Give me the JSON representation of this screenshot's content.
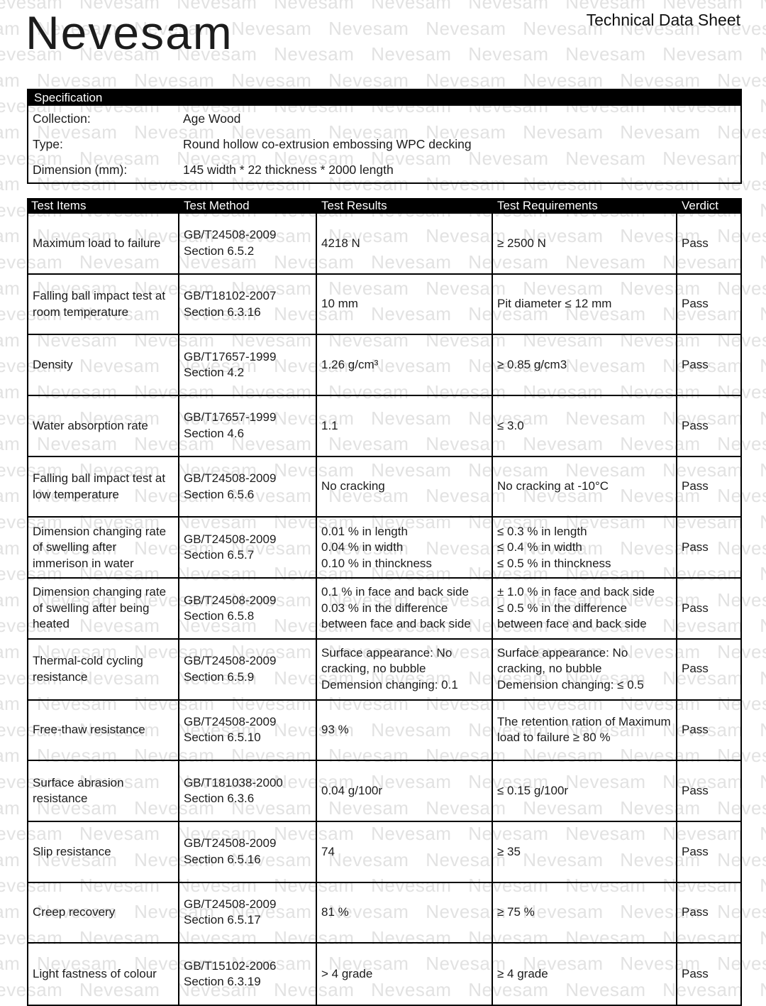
{
  "watermark": {
    "text": "Nevesam"
  },
  "header": {
    "logo": "Nevesam",
    "title": "Technical Data Sheet"
  },
  "specification": {
    "heading": "Specification",
    "rows": [
      {
        "label": "Collection:",
        "value": "Age Wood"
      },
      {
        "label": "Type:",
        "value": "Round hollow co-extrusion embossing WPC decking"
      },
      {
        "label": "Dimension (mm):",
        "value": "145 width * 22 thickness * 2000 length"
      }
    ]
  },
  "table": {
    "columns": [
      "Test Items",
      "Test Method",
      "Test Results",
      "Test Requirements",
      "Verdict"
    ],
    "rows": [
      {
        "item": "Maximum load to failure",
        "method": "GB/T24508-2009\nSection 6.5.2",
        "result": "4218 N",
        "requirement": "≥ 2500 N",
        "verdict": "Pass"
      },
      {
        "item": "Falling ball impact test at room temperature",
        "method": "GB/T18102-2007\nSection 6.3.16",
        "result": "10 mm",
        "requirement": "Pit diameter ≤ 12 mm",
        "verdict": "Pass"
      },
      {
        "item": "Density",
        "method": "GB/T17657-1999\nSection 4.2",
        "result": "1.26 g/cm³",
        "requirement": "≥ 0.85 g/cm3",
        "verdict": "Pass"
      },
      {
        "item": "Water absorption rate",
        "method": "GB/T17657-1999\nSection 4.6",
        "result": "1.1",
        "requirement": "≤ 3.0",
        "verdict": "Pass"
      },
      {
        "item": "Falling ball impact test at low temperature",
        "method": "GB/T24508-2009\nSection 6.5.6",
        "result": "No cracking",
        "requirement": "No cracking at -10°C",
        "verdict": "Pass"
      },
      {
        "item": "Dimension changing rate of swelling after immerison in water",
        "method": "GB/T24508-2009\nSection 6.5.7",
        "result": "0.01 % in length\n0.04 % in width\n0.10 % in thinckness",
        "requirement": "≤ 0.3 % in length\n≤ 0.4 % in width\n≤ 0.5 % in thinckness",
        "verdict": "Pass"
      },
      {
        "item": "Dimension changing rate of swelling after being heated",
        "method": "GB/T24508-2009\nSection 6.5.8",
        "result": "0.1 % in face and back side\n0.03 % in the difference between face and back side",
        "requirement": "± 1.0 % in face and back side\n≤ 0.5 % in the difference between face and back side",
        "verdict": "Pass"
      },
      {
        "item": "Thermal-cold cycling resistance",
        "method": "GB/T24508-2009\nSection 6.5.9",
        "result": "Surface appearance: No cracking, no bubble\nDemension changing: 0.1",
        "requirement": "Surface appearance: No cracking, no bubble\nDemension changing: ≤ 0.5",
        "verdict": "Pass"
      },
      {
        "item": "Free-thaw resistance",
        "method": "GB/T24508-2009\nSection 6.5.10",
        "result": "93 %",
        "requirement": "The retention ration of Maximum load to failure ≥ 80 %",
        "verdict": "Pass"
      },
      {
        "item": "Surface abrasion resistance",
        "method": "GB/T181038-2000\nSection 6.3.6",
        "result": "0.04 g/100r",
        "requirement": "≤ 0.15 g/100r",
        "verdict": "Pass"
      },
      {
        "item": "Slip resistance",
        "method": "GB/T24508-2009\nSection 6.5.16",
        "result": "74",
        "requirement": "≥ 35",
        "verdict": "Pass"
      },
      {
        "item": "Creep recovery",
        "method": "GB/T24508-2009\nSection 6.5.17",
        "result": "81 %",
        "requirement": "≥ 75 %",
        "verdict": "Pass"
      },
      {
        "item": "Light fastness of colour",
        "method": "GB/T15102-2006\nSection 6.3.19",
        "result": "> 4 grade",
        "requirement": "≥ 4 grade",
        "verdict": "Pass"
      }
    ]
  },
  "colors": {
    "bar_bg": "#000000",
    "bar_text": "#ffffff",
    "text": "#1b1b1b",
    "border": "#000000",
    "watermark": "#e2e2e2"
  }
}
